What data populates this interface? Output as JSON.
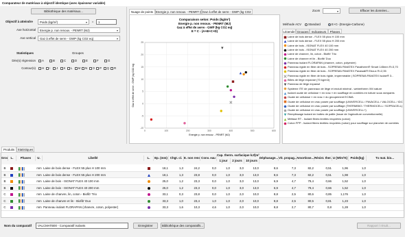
{
  "window_title": "Comparateur de matériaux à objectif identique (avec épaisseur variable)",
  "left": {
    "library_button": "Bibliothèque des matériaux...",
    "objective_label": "Objectif à atteindre",
    "objective_select": "Poids (kg/m²)",
    "equals": "=",
    "objective_value": "1",
    "x_axis_label": "Axe horizontal",
    "x_axis_select": "Energie p. non renouv. - PENRT (MJ)",
    "y_axis_label": "Axe vertical",
    "y_axis_select": "Gaz à effet de serre - GWP (kg CO2 eq)",
    "stats_label": "Statistiques",
    "groups_label": "Groupes",
    "regression_label": "Dév(s) régression",
    "regression_groups": [
      "A",
      "B",
      "C",
      "D",
      "E",
      "F",
      "G"
    ],
    "contour_label": "Contour(s)",
    "contour_groups": [
      "H",
      "I",
      "J",
      "K",
      "L",
      "M",
      "N",
      "O",
      "P",
      "Q",
      "R"
    ]
  },
  "chart_tabs": [
    "Nuage de points",
    "Energie p. non renouv. - PENRT (MJ)",
    "Gaz à effet de serre - GWP (kg CO2 eq)"
  ],
  "chart_data": {
    "type": "scatter",
    "title": "Comparaison selon: Poids (kg/m²)",
    "subtitles": [
      "Energie p. non renouv. - PENRT (MJ)",
      "Gaz à effet de serre - GWP (kg CO2 eq)",
      "E = C - (A+B+C+D)"
    ],
    "xlabel": "Energie p. non renouv. - PENRT (MJ)",
    "ylabel": "Gaz à effet de serre - GWP (kg CO2 eq)",
    "xlim": [
      0,
      600
    ],
    "xticks": [
      0,
      100,
      200,
      300,
      400,
      500,
      600
    ],
    "ylim": [
      -10,
      25
    ],
    "yticks": [
      -10,
      -5,
      0,
      5,
      10,
      15,
      20,
      25
    ],
    "grid": true,
    "series": [
      {
        "name": "Laine de bois dense - FLEX 55 plus H 100 mm",
        "color": "#8b1a1a",
        "marker": "square",
        "x": [
          410
        ],
        "values": [
          9.0
        ]
      },
      {
        "name": "Laine de bois dense - FLEX 55 plus H 200 mm",
        "color": "#1f3fbf",
        "marker": "triangle",
        "x": [
          445
        ],
        "values": [
          12.5
        ]
      },
      {
        "name": "Laine de bois - ISONAT FLEX 40 100 mm",
        "color": "#f08c00",
        "marker": "circle",
        "x": [
          460
        ],
        "values": [
          12.0
        ]
      },
      {
        "name": "Laine de bois - ISONAT FLEX 40 200 mm",
        "color": "#111111",
        "marker": "circle",
        "x": [
          470
        ],
        "values": [
          12.8
        ]
      },
      {
        "name": "Laine de chanvre, lin, coton - Biofib' Trio",
        "color": "#c0148c",
        "marker": "circle",
        "x": [
          400
        ],
        "values": [
          5.5
        ]
      },
      {
        "name": "Laine de chanvre et lin - Biofib' Duo",
        "color": "#2e8b2e",
        "marker": "circle",
        "x": [
          385
        ],
        "values": [
          7.0
        ]
      },
      {
        "name": "Panneau isolant FLORAPAN (chanvre, coton, polyester)",
        "color": "#7b2fa8",
        "marker": "circle",
        "x": [
          415
        ],
        "values": [
          2.8
        ]
      },
      {
        "name": "Panneau rigide en fibre de bois - SOPREMA PAVATEX Pavatherm® Smart 145mm R=3,70",
        "color": "#d62020",
        "marker": "circle",
        "x": [
          30
        ],
        "values": [
          -6.5
        ]
      },
      {
        "name": "Panneau rigide en fibre de bois - SOPREMA PAVATEX Pavawall® Eboux R=2,35",
        "color": "#e0c000",
        "marker": "circle",
        "x": [
          355
        ],
        "values": [
          -3.0
        ]
      },
      {
        "name": "Panneau rigide en fibre de bois rigide, imperméable | SOPREMA PAVATEX Isolair® 3...",
        "color": "#888888",
        "marker": "x",
        "x": [
          400
        ],
        "values": [
          0.5
        ]
      },
      {
        "name": "Billes de liège expansé (70 kg/m3)",
        "color": "#e0609a",
        "marker": "circle",
        "x": [
          185
        ],
        "values": [
          -8.0
        ]
      },
      {
        "name": "Panneau de liège expansé",
        "color": "#444444",
        "marker": "triangle-down",
        "x": [
          360
        ],
        "values": [
          22.7
        ]
      },
      {
        "name": "Système ITE de panneaux de liège et enduit minéral - webertherm XM nature",
        "color": "#e8a040",
        "marker": "circle",
        "x": [],
        "values": []
      },
      {
        "name": "Isolant ouate de cellulose « en vrac » en soufflage en combles en toiture sous rampants",
        "color": "#4a90d0",
        "marker": "triangle",
        "x": [],
        "values": []
      },
      {
        "name": "Ouate de cellulose « en vrac » du groupement ECIMA",
        "color": "#c04040",
        "marker": "circle",
        "x": [],
        "values": []
      },
      {
        "name": "Ouate de cellulose en vrac posée par soufflage (UNIVERCELL / PAVACELL / VALOCELL / IDC...)",
        "color": "#e07020",
        "marker": "square",
        "x": [],
        "values": []
      },
      {
        "name": "Ouate de cellulose en vrac posée par soufflage (THERMIBIO / THERMOCELL / SOPRACELL)",
        "color": "#3060c0",
        "marker": "circle",
        "x": [],
        "values": []
      },
      {
        "name": "Ouate de cellulose en vrac posée par soufflage (UNIVERCELL+)",
        "color": "#a0a0a0",
        "marker": "circle",
        "x": [],
        "values": []
      },
      {
        "name": "Remplissage isolant en bottes de paille (issue de l'agriculture conventionnelle)",
        "color": "#30a0a0",
        "marker": "triangle-down",
        "x": [],
        "values": []
      },
      {
        "name": "Métisse RT - Isolant fibres textiles recyclées (coton)",
        "color": "#90c030",
        "marker": "triangle",
        "x": [],
        "values": []
      },
      {
        "name": "Coton FPP - Isolant fibres textiles recyclées (coton) pour soufflage sur plancher de combles",
        "color": "#d02060",
        "marker": "circle",
        "x": [],
        "values": []
      }
    ]
  },
  "right": {
    "zoom_label": "Zoom",
    "clear_button": "Effacer les données...",
    "acv_method_label": "Méthode ACV",
    "acv_options": [
      "Standard",
      "E+C- (Energie-Carbone)"
    ],
    "acv_selected": 1,
    "legend_tabs": [
      "Légende",
      "Groupes",
      "Indicateurs",
      "Phases"
    ]
  },
  "bottom_tabs": [
    "Produits",
    "Statistiques"
  ],
  "table": {
    "group_header": "Cap. therm. surfacique kJ/(m².K)",
    "headers": [
      "Groupe",
      "L.",
      "Phases",
      "U.",
      "Libellé",
      "L.",
      "Ep. (mm)",
      "Chgt. cl.",
      "E. non renouv.",
      "Conv. eau",
      "1 jour",
      "2 jours",
      "10 jours",
      "Déphasage...",
      "Vit. propag...",
      "Amortisse...",
      "Résist. ther...",
      "U (W/m²K)",
      "Poids(kg)",
      "Tx mat. bio..."
    ],
    "rows": [
      [
        "B",
        "mm",
        "Laine de bois dense - FLEX 55 plus H 100 mm",
        "18,1",
        "1,3",
        "24,2",
        "0,0",
        "1,0",
        "3,0",
        "13,0",
        "8,6",
        "7,3",
        "82,2",
        "0,51",
        "1,96",
        "1,0"
      ],
      [
        "B",
        "mm",
        "Laine de bois dense - FLEX 55 plus H 200 mm",
        "18,1",
        "1,3",
        "23,8",
        "0,0",
        "1,0",
        "3,0",
        "13,0",
        "8,6",
        "7,3",
        "82,2",
        "0,51",
        "1,98",
        "1,0"
      ],
      [
        "B",
        "mm",
        "Laine de bois - ISONAT FLEX 40 100 mm",
        "25,0",
        "1,2",
        "23,3",
        "0,0",
        "1,0",
        "3,0",
        "13,0",
        "6,9",
        "4,7",
        "79,4",
        "0,66",
        "1,52",
        "1,0"
      ],
      [
        "B",
        "mm",
        "Laine de bois - ISONAT FLEX 40 200 mm",
        "25,0",
        "1,2",
        "23,3",
        "0,0",
        "1,0",
        "3,0",
        "13,0",
        "6,9",
        "4,7",
        "79,4",
        "0,66",
        "1,52",
        "1,0"
      ],
      [
        "C",
        "mm",
        "Laine de chanvre, lin, coton - Biofib' Trio",
        "33,1",
        "0,3",
        "23,8",
        "0,0",
        "1,0",
        "2,0",
        "10,0",
        "8,8",
        "2,5",
        "80,6",
        "0,85",
        "1,176",
        "1,0"
      ],
      [
        "C",
        "mm",
        "Laine de chanvre et lin - Biofib' Duo",
        "33,3",
        "1,0",
        "23,4",
        "1,0",
        "1,0",
        "2,0",
        "10,0",
        "8,8",
        "2,5",
        "80,5",
        "0,81",
        "1,23",
        "1,0"
      ],
      [
        "C",
        "mm",
        "Panneau isolant FLORAPAN (chanvre, coton, polyester)",
        "33,3",
        "1,6",
        "10,3",
        "4,6",
        "1,0",
        "2,0",
        "10,0",
        "8,8",
        "2,7",
        "80,7",
        "0,8",
        "1,28",
        "1,0"
      ]
    ]
  },
  "footer": {
    "name_label": "Nom du comparatif",
    "name_value": "VALCMATB00 - Comparatif isolants",
    "save_button": "Enregistrer",
    "library_button": "Bibliothèque des comparatifs...",
    "report_button": "Rapport / résult..."
  }
}
